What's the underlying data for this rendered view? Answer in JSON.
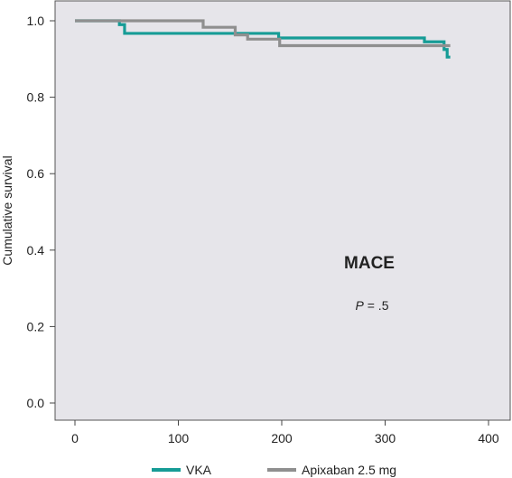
{
  "chart_data": {
    "type": "line",
    "step": true,
    "xlabel": "",
    "ylabel": "Cumulative survival",
    "xlim": [
      0,
      400
    ],
    "ylim": [
      0.0,
      1.0
    ],
    "xticks": [
      0,
      100,
      200,
      300,
      400
    ],
    "yticks": [
      0.0,
      0.2,
      0.4,
      0.6,
      0.8,
      1.0
    ],
    "ytick_labels": [
      "0.0",
      "0.2",
      "0.4",
      "0.6",
      "0.8",
      "1.0"
    ],
    "grid": false,
    "legend": "bottom",
    "annotations": {
      "title": "MACE",
      "p_prefix": "P",
      "p_suffix": " = .5"
    },
    "series": [
      {
        "name": "VKA",
        "color": "#169c96",
        "x": [
          0,
          43,
          48,
          193,
          197,
          338,
          357,
          360,
          363
        ],
        "y": [
          1.0,
          0.99,
          0.967,
          0.967,
          0.955,
          0.945,
          0.925,
          0.905,
          0.905
        ]
      },
      {
        "name": "Apixaban 2.5 mg",
        "color": "#8f8f8f",
        "x": [
          0,
          124,
          155,
          167,
          198,
          338,
          363
        ],
        "y": [
          1.0,
          0.983,
          0.963,
          0.952,
          0.935,
          0.935,
          0.935
        ]
      }
    ]
  }
}
